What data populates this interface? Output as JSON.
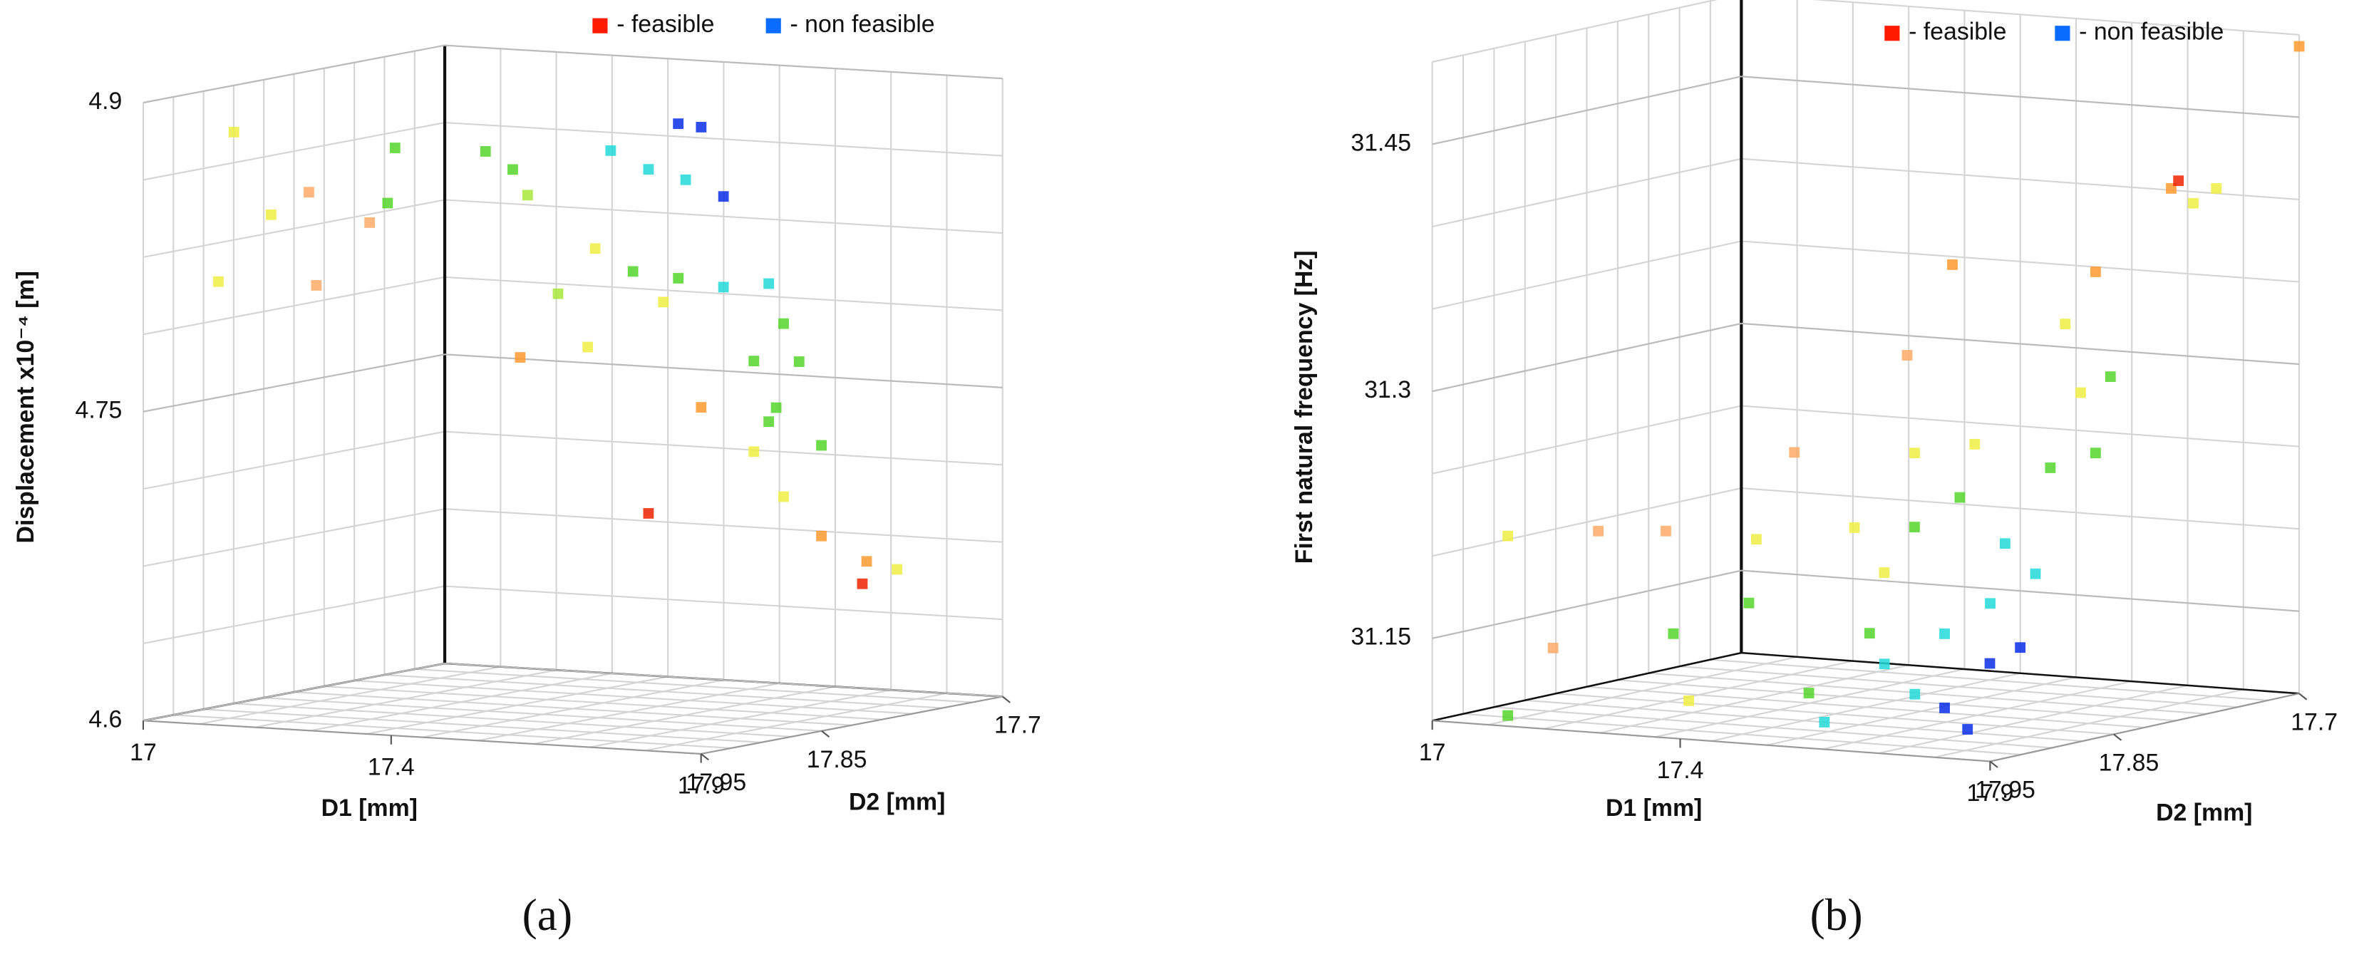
{
  "chart_data": [
    {
      "type": "scatter3d",
      "caption": "(a)",
      "xlabel": "D1 [mm]",
      "ylabel": "D2 [mm]",
      "zlabel": "Displacement x10⁻⁴ [m]",
      "xlim": [
        17,
        17.9
      ],
      "ylim": [
        17.95,
        17.7
      ],
      "zlim": [
        4.6,
        4.9
      ],
      "xticks": [
        17,
        17.4,
        17.9
      ],
      "yticks": [
        17.95,
        17.85,
        17.7
      ],
      "zticks": [
        4.6,
        4.75,
        4.9
      ],
      "legend": [
        {
          "name": "- feasible",
          "color": "#ff1a00"
        },
        {
          "name": "- non feasible",
          "color": "#0a6cff"
        }
      ],
      "x": [
        17.163,
        17.207,
        17.231,
        17.365,
        17.426,
        17.474,
        17.511,
        17.547,
        17.486,
        17.401,
        17.474,
        17.547,
        17.62,
        17.644,
        17.45,
        17.34,
        17.328,
        17.511,
        17.62,
        17.705,
        17.596,
        17.644,
        17.705,
        17.778,
        17.827,
        17.771,
        17.426,
        17.219,
        17.28,
        17.596,
        17.669,
        17.632,
        17.049,
        17.17,
        17.024,
        17.268,
        17.309,
        17.297,
        17.182,
        17.109
      ],
      "y": [
        17.75,
        17.75,
        17.75,
        17.75,
        17.75,
        17.75,
        17.75,
        17.75,
        17.75,
        17.75,
        17.75,
        17.75,
        17.75,
        17.75,
        17.75,
        17.75,
        17.75,
        17.75,
        17.75,
        17.75,
        17.75,
        17.75,
        17.75,
        17.75,
        17.75,
        17.75,
        17.75,
        17.75,
        17.75,
        17.75,
        17.75,
        17.75,
        17.9,
        17.9,
        17.9,
        17.9,
        17.9,
        17.9,
        17.9,
        17.9
      ],
      "z": [
        4.857,
        4.849,
        4.837,
        4.861,
        4.853,
        4.876,
        4.875,
        4.842,
        4.849,
        4.803,
        4.801,
        4.798,
        4.801,
        4.782,
        4.789,
        4.813,
        4.765,
        4.739,
        4.734,
        4.724,
        4.719,
        4.698,
        4.68,
        4.669,
        4.666,
        4.658,
        4.686,
        4.758,
        4.79,
        4.763,
        4.764,
        4.741,
        4.881,
        4.854,
        4.808,
        4.841,
        4.878,
        4.851,
        4.809,
        4.842
      ],
      "colors": [
        "#55d62a",
        "#55d62a",
        "#a8e83a",
        "#22d8d8",
        "#22d8d8",
        "#0a2ee8",
        "#0a2ee8",
        "#0a2ee8",
        "#22d8d8",
        "#55d62a",
        "#55d62a",
        "#22d8d8",
        "#22d8d8",
        "#55d62a",
        "#eeee44",
        "#eeee44",
        "#eeee44",
        "#ff9a30",
        "#55d62a",
        "#55d62a",
        "#eeee44",
        "#eeee44",
        "#ff9a30",
        "#ff9a30",
        "#eeee44",
        "#ee2200",
        "#ee2200",
        "#ff9a30",
        "#a8e83a",
        "#55d62a",
        "#55d62a",
        "#55d62a",
        "#eeee44",
        "#ffaa66",
        "#eeee44",
        "#ffaa66",
        "#55d62a",
        "#55d62a",
        "#ffaa66",
        "#eeee44"
      ]
    },
    {
      "type": "scatter3d",
      "caption": "(b)",
      "xlabel": "D1 [mm]",
      "ylabel": "D2 [mm]",
      "zlabel": "First natural frequency [Hz]",
      "xlim": [
        17,
        17.9
      ],
      "ylim": [
        17.95,
        17.7
      ],
      "zlim": [
        31.1,
        31.5
      ],
      "xticks": [
        17,
        17.4,
        17.9
      ],
      "yticks": [
        17.95,
        17.85,
        17.7
      ],
      "zticks": [
        31.15,
        31.3,
        31.45
      ],
      "legend": [
        {
          "name": "- feasible",
          "color": "#ff1a00"
        },
        {
          "name": "- non feasible",
          "color": "#0a6cff"
        }
      ],
      "x": [
        17.677,
        17.714,
        17.629,
        17.58,
        17.75,
        17.799,
        17.677,
        17.556,
        17.458,
        17.483,
        17.072,
        17.339,
        17.364,
        17.145,
        17.072,
        17.218,
        17.327,
        17.473,
        17.479,
        17.552,
        17.625,
        17.674,
        17.601,
        17.43,
        17.382,
        17.698,
        17.771,
        17.576,
        17.479,
        17.747,
        17.795,
        17.722,
        17.771,
        17.893,
        17.829,
        17.866,
        17.805,
        17.9,
        17.54,
        17.467,
        17.285,
        17.461
      ],
      "y": [
        17.875,
        17.875,
        17.875,
        17.875,
        17.875,
        17.875,
        17.875,
        17.875,
        17.875,
        17.875,
        17.925,
        17.925,
        17.925,
        17.925,
        17.925,
        17.925,
        17.925,
        17.925,
        17.8,
        17.8,
        17.8,
        17.8,
        17.8,
        17.8,
        17.8,
        17.8,
        17.8,
        17.8,
        17.8,
        17.8,
        17.8,
        17.8,
        17.8,
        17.8,
        17.75,
        17.75,
        17.75,
        17.7,
        17.8,
        17.8,
        17.8,
        17.925
      ],
      "z": [
        31.114,
        31.102,
        31.121,
        31.138,
        31.143,
        31.154,
        31.159,
        31.156,
        31.117,
        31.1,
        31.101,
        31.158,
        31.118,
        31.144,
        31.21,
        31.217,
        31.22,
        31.219,
        31.206,
        31.226,
        31.2,
        31.183,
        31.163,
        31.177,
        31.203,
        31.248,
        31.259,
        31.259,
        31.251,
        31.295,
        31.306,
        31.336,
        31.369,
        31.423,
        31.404,
        31.414,
        31.417,
        31.493,
        31.367,
        31.31,
        31.246,
        31.18
      ],
      "colors": [
        "#0a2ee8",
        "#0a2ee8",
        "#22d8d8",
        "#22d8d8",
        "#0a2ee8",
        "#0a2ee8",
        "#22d8d8",
        "#55d62a",
        "#55d62a",
        "#22d8d8",
        "#55d62a",
        "#55d62a",
        "#eeee44",
        "#ffaa66",
        "#eeee44",
        "#ffaa66",
        "#ffaa66",
        "#eeee44",
        "#55d62a",
        "#55d62a",
        "#22d8d8",
        "#22d8d8",
        "#22d8d8",
        "#eeee44",
        "#eeee44",
        "#55d62a",
        "#55d62a",
        "#eeee44",
        "#eeee44",
        "#eeee44",
        "#55d62a",
        "#eeee44",
        "#ff9a30",
        "#ff9a30",
        "#eeee44",
        "#eeee44",
        "#ee2200",
        "#ff9a30",
        "#ff9a30",
        "#ffaa66",
        "#ffaa66",
        "#55d62a"
      ]
    }
  ]
}
